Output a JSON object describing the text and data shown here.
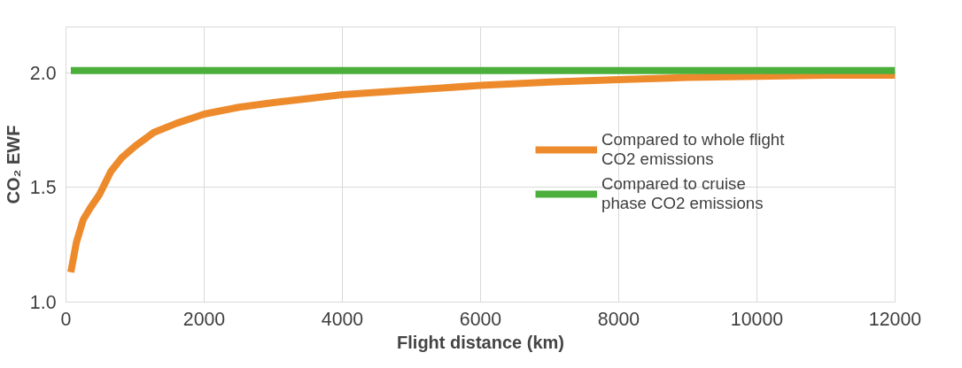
{
  "chart_data": {
    "type": "line",
    "xlabel": "Flight distance (km)",
    "ylabel": "CO₂ EWF",
    "xlim": [
      0,
      12000
    ],
    "xticks": [
      0,
      2000,
      4000,
      6000,
      8000,
      10000,
      12000
    ],
    "ylim": [
      1.0,
      2.2
    ],
    "yticks": [
      {
        "value": 1.0,
        "label": "1.0"
      },
      {
        "value": 1.5,
        "label": "1.5"
      },
      {
        "value": 2.0,
        "label": "2.0"
      }
    ],
    "grid": true,
    "legend": "right",
    "line_style": "solid",
    "marker": "none",
    "series": [
      {
        "name": "Compared to whole flight CO2 emissions",
        "color": "#ed8b2c",
        "x": [
          70,
          150,
          250,
          350,
          485,
          650,
          808,
          1000,
          1270,
          1600,
          2000,
          2500,
          3000,
          4000,
          5000,
          6000,
          7000,
          8000,
          9000,
          10000,
          11000,
          12000
        ],
        "values": [
          1.13,
          1.26,
          1.36,
          1.41,
          1.47,
          1.57,
          1.63,
          1.68,
          1.74,
          1.78,
          1.82,
          1.85,
          1.87,
          1.905,
          1.925,
          1.945,
          1.96,
          1.97,
          1.98,
          1.985,
          1.99,
          1.99
        ]
      },
      {
        "name": "Compared to cruise phase CO2 emissions",
        "color": "#4caf3c",
        "x": [
          70,
          12000
        ],
        "values": [
          2.01,
          2.01
        ]
      }
    ]
  }
}
